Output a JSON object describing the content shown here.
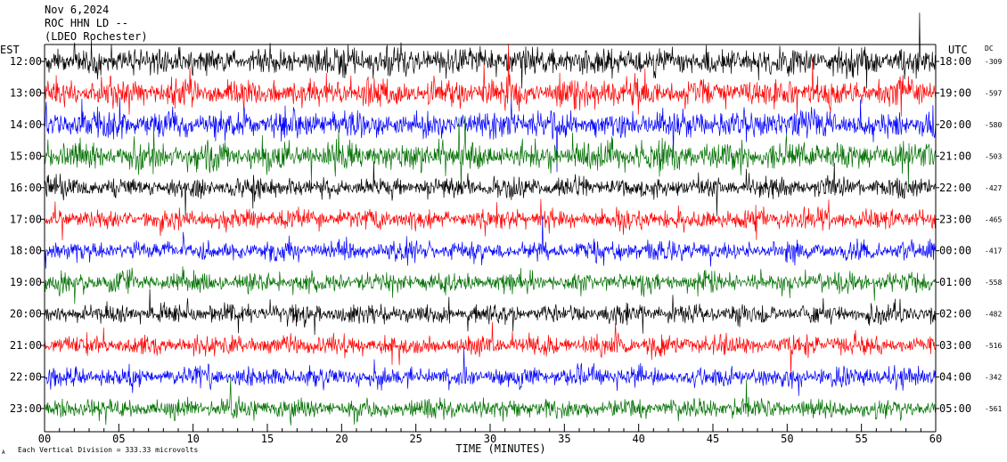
{
  "header": {
    "date": "Nov 6,2024",
    "station": "ROC HHN LD --",
    "location": "(LDEO Rochester)"
  },
  "left_axis_label": "EST",
  "right_axis_label": "UTC",
  "dc_label": "DC",
  "xlabel": "TIME (MINUTES)",
  "footer_note": "Each Vertical Division = 333.33 microvolts",
  "footer_mark": "A",
  "colors": [
    "#000000",
    "#ff0000",
    "#0000ff",
    "#007000"
  ],
  "chart_data": {
    "type": "line",
    "title": "",
    "xlabel": "TIME (MINUTES)",
    "x_ticks": [
      "00",
      "05",
      "10",
      "15",
      "20",
      "25",
      "30",
      "35",
      "40",
      "45",
      "50",
      "55",
      "60"
    ],
    "xlim": [
      0,
      60
    ],
    "rows": [
      {
        "est": "12:00",
        "utc": "18:00",
        "dc": "-309"
      },
      {
        "est": "13:00",
        "utc": "19:00",
        "dc": "-597"
      },
      {
        "est": "14:00",
        "utc": "20:00",
        "dc": "-580"
      },
      {
        "est": "15:00",
        "utc": "21:00",
        "dc": "-503"
      },
      {
        "est": "16:00",
        "utc": "22:00",
        "dc": "-427"
      },
      {
        "est": "17:00",
        "utc": "23:00",
        "dc": "-465"
      },
      {
        "est": "18:00",
        "utc": "00:00",
        "dc": "-417"
      },
      {
        "est": "19:00",
        "utc": "01:00",
        "dc": "-558"
      },
      {
        "est": "20:00",
        "utc": "02:00",
        "dc": "-482"
      },
      {
        "est": "21:00",
        "utc": "03:00",
        "dc": "-516"
      },
      {
        "est": "22:00",
        "utc": "04:00",
        "dc": "-342"
      },
      {
        "est": "23:00",
        "utc": "05:00",
        "dc": "-561"
      }
    ]
  }
}
